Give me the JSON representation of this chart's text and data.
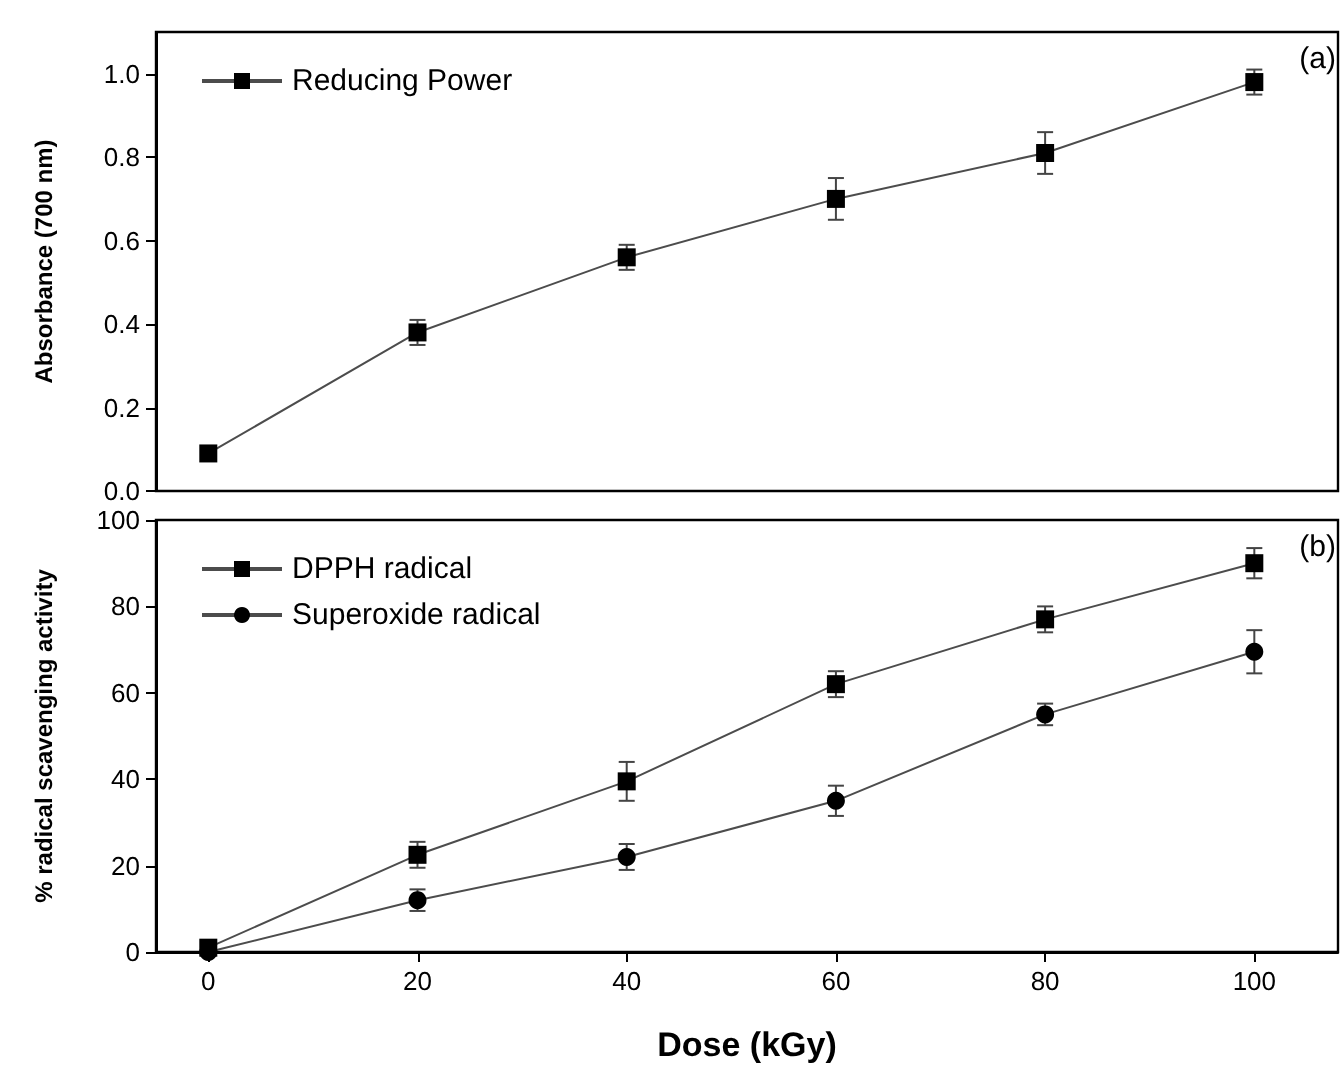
{
  "chart_data": [
    {
      "type": "line",
      "ylabel": "Absorbance (700 nm)",
      "x": [
        0,
        20,
        40,
        60,
        80,
        100
      ],
      "xlim": [
        -5,
        108
      ],
      "ylim": [
        0,
        1.1
      ],
      "yticks": [
        {
          "value": 0,
          "label": "0.0"
        },
        0.2,
        0.4,
        0.6,
        0.8,
        {
          "value": 1,
          "label": "1.0"
        }
      ],
      "tick_labels": "y",
      "legend": "top left",
      "annotations": [
        "(a)"
      ],
      "grid": false,
      "series": [
        {
          "name": "Reducing Power",
          "color": "#000000",
          "marker": "square",
          "values": [
            0.09,
            0.38,
            0.56,
            0.7,
            0.81,
            0.98
          ],
          "errors": [
            0.01,
            0.03,
            0.03,
            0.05,
            0.05,
            0.03
          ]
        }
      ]
    },
    {
      "type": "line",
      "xlabel": "Dose (kGy)",
      "ylabel": "% radical scavenging activity",
      "x": [
        0,
        20,
        40,
        60,
        80,
        100
      ],
      "xlim": [
        -5,
        108
      ],
      "xticks": [
        0,
        20,
        40,
        60,
        80,
        100
      ],
      "ylim": [
        0,
        100
      ],
      "yticks": [
        0,
        20,
        40,
        60,
        80,
        100
      ],
      "legend": "top left",
      "annotations": [
        "(b)"
      ],
      "grid": false,
      "series": [
        {
          "name": "DPPH radical",
          "color": "#000000",
          "marker": "square",
          "values": [
            1,
            22.5,
            39.5,
            62,
            77,
            90
          ],
          "errors": [
            1,
            3,
            4.5,
            3,
            3,
            3.5
          ]
        },
        {
          "name": "Superoxide radical",
          "color": "#000000",
          "marker": "circle",
          "values": [
            0,
            12,
            22,
            35,
            55,
            69.5
          ],
          "errors": [
            null,
            2.5,
            3,
            3.5,
            2.5,
            5
          ]
        }
      ]
    }
  ]
}
